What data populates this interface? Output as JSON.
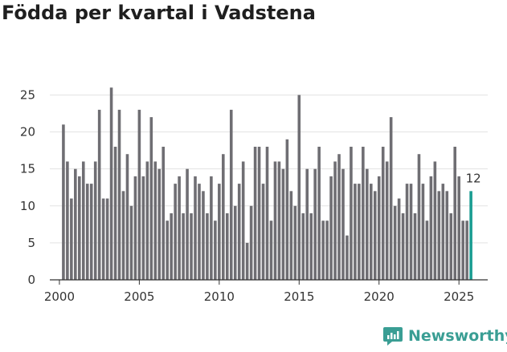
{
  "chart_data": {
    "type": "bar",
    "title": "Födda per kvartal i Vadstena",
    "xlabel": "",
    "ylabel": "",
    "x_start": 2000.25,
    "x_step": 0.25,
    "values": [
      21,
      16,
      11,
      15,
      14,
      16,
      13,
      13,
      16,
      23,
      11,
      11,
      26,
      18,
      23,
      12,
      17,
      10,
      14,
      23,
      14,
      16,
      22,
      16,
      15,
      18,
      8,
      9,
      13,
      14,
      9,
      15,
      9,
      14,
      13,
      12,
      9,
      14,
      8,
      13,
      17,
      9,
      23,
      10,
      13,
      16,
      5,
      10,
      18,
      18,
      13,
      18,
      8,
      16,
      16,
      15,
      19,
      12,
      10,
      25,
      9,
      15,
      9,
      15,
      18,
      8,
      8,
      14,
      16,
      17,
      15,
      6,
      18,
      13,
      13,
      18,
      15,
      13,
      12,
      14,
      18,
      16,
      22,
      10,
      11,
      9,
      13,
      13,
      9,
      17,
      13,
      8,
      14,
      16,
      12,
      13,
      12,
      9,
      18,
      14,
      8,
      8,
      12
    ],
    "highlight_last": true,
    "last_value_label": "12",
    "xticks": [
      2000,
      2005,
      2010,
      2015,
      2020,
      2025
    ],
    "yticks": [
      0,
      5,
      10,
      15,
      20,
      25
    ],
    "xlim": [
      1999.4,
      2026.8
    ],
    "ylim": [
      0,
      27
    ],
    "grid": "horizontal",
    "colors": {
      "bar": "#6f6e73",
      "highlight": "#1a9d92",
      "grid": "#e3e3e3",
      "axis": "#333333"
    }
  },
  "brand": {
    "name": "Newsworthy",
    "icon": "newsworthy-logo-icon"
  }
}
